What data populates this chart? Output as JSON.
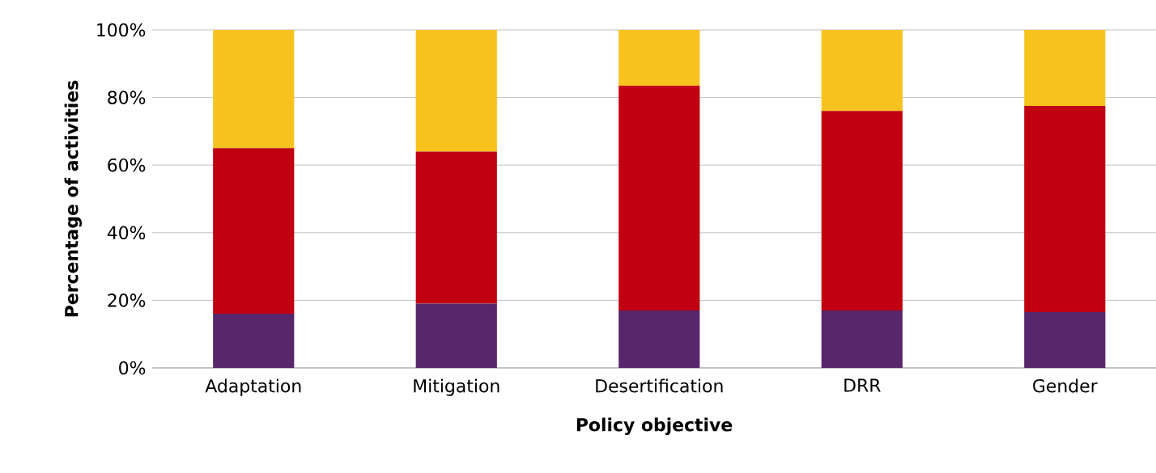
{
  "chart_data": {
    "type": "bar",
    "stacked": true,
    "xlabel": "Policy objective",
    "ylabel": "Percentage of activities",
    "categories": [
      "Adaptation",
      "Mitigation",
      "Desertification",
      "DRR",
      "Gender"
    ],
    "series": [
      {
        "color": "#58266a",
        "values": [
          16,
          19,
          17,
          17,
          16.5
        ]
      },
      {
        "color": "#c00010",
        "values": [
          49,
          45,
          66.5,
          59,
          61
        ]
      },
      {
        "color": "#f9c31f",
        "values": [
          35,
          36,
          16.5,
          24,
          22.5
        ]
      }
    ],
    "ylim": [
      0,
      100
    ],
    "yticks": [
      {
        "value": 0,
        "label": "0%"
      },
      {
        "value": 20,
        "label": "20%"
      },
      {
        "value": 40,
        "label": "40%"
      },
      {
        "value": 60,
        "label": "60%"
      },
      {
        "value": 80,
        "label": "80%"
      },
      {
        "value": 100,
        "label": "100%"
      }
    ],
    "grid": "y"
  }
}
